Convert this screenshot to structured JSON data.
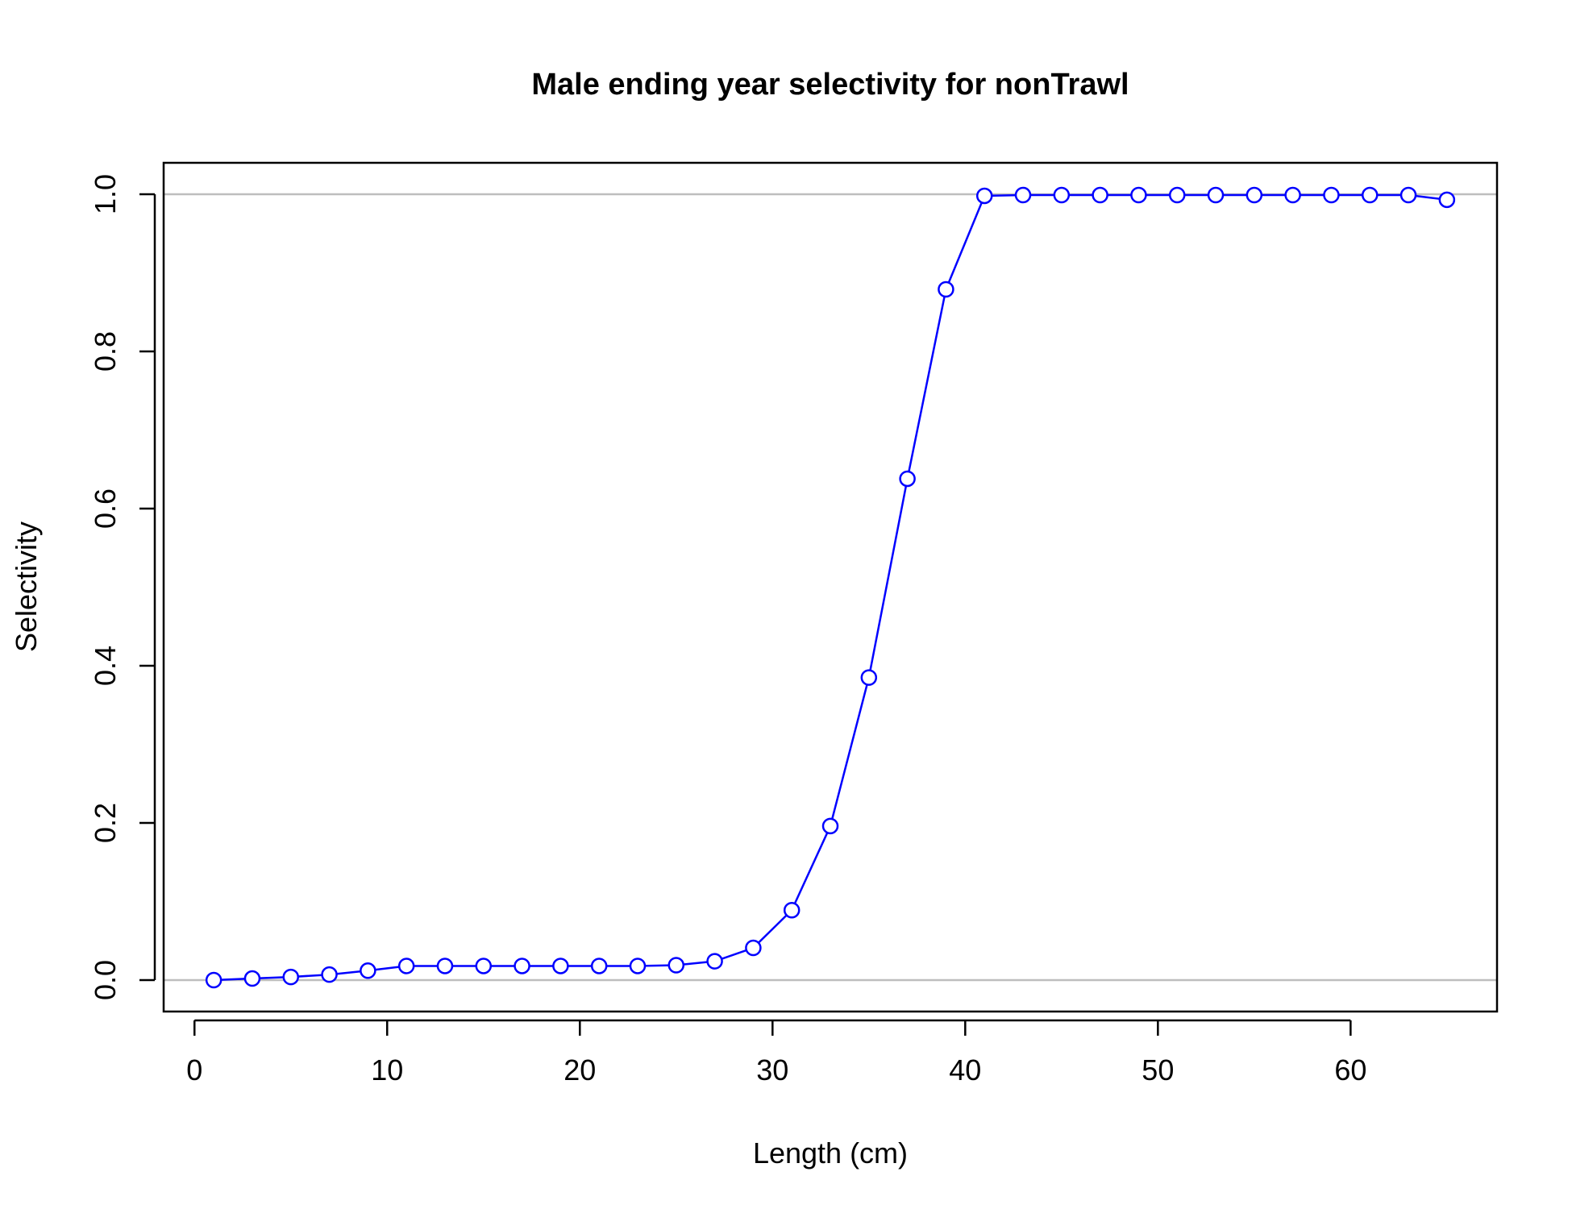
{
  "chart_data": {
    "type": "line",
    "title": "Male ending year selectivity for nonTrawl",
    "xlabel": "Length (cm)",
    "ylabel": "Selectivity",
    "xlim": [
      -1.6,
      67.6
    ],
    "ylim": [
      -0.04,
      1.04
    ],
    "xticks": [
      0,
      10,
      20,
      30,
      40,
      50,
      60
    ],
    "yticks": [
      0.0,
      0.2,
      0.4,
      0.6,
      0.8,
      1.0
    ],
    "xtick_labels": [
      "0",
      "10",
      "20",
      "30",
      "40",
      "50",
      "60"
    ],
    "ytick_labels": [
      "0.0",
      "0.2",
      "0.4",
      "0.6",
      "0.8",
      "1.0"
    ],
    "reference_lines": [
      0,
      1
    ],
    "grid": false,
    "series": [
      {
        "color": "#0000ff",
        "marker": "open-circle",
        "x": [
          1,
          3,
          5,
          7,
          9,
          11,
          13,
          15,
          17,
          19,
          21,
          23,
          25,
          27,
          29,
          31,
          33,
          35,
          37,
          39,
          41,
          43,
          45,
          47,
          49,
          51,
          53,
          55,
          57,
          59,
          61,
          63,
          65
        ],
        "y": [
          0.0,
          0.002,
          0.004,
          0.007,
          0.012,
          0.018,
          0.018,
          0.018,
          0.018,
          0.018,
          0.018,
          0.018,
          0.019,
          0.024,
          0.041,
          0.089,
          0.196,
          0.385,
          0.638,
          0.879,
          0.998,
          0.999,
          0.999,
          0.999,
          0.999,
          0.999,
          0.999,
          0.999,
          0.999,
          0.999,
          0.999,
          0.999,
          0.993
        ]
      }
    ],
    "colors": {
      "series": "#0000ff",
      "reference_line": "#bebebe",
      "frame": "#000000"
    }
  }
}
